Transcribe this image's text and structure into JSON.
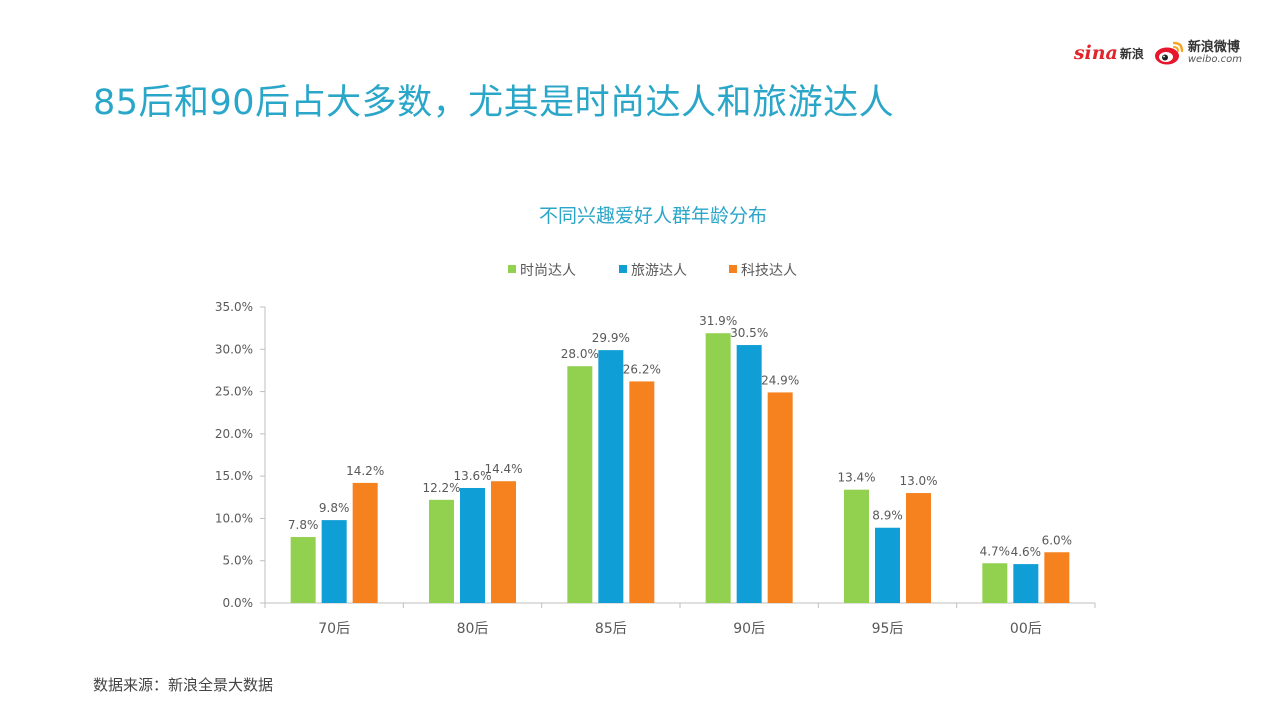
{
  "header": {
    "title": "85后和90后占大多数，尤其是时尚达人和旅游达人"
  },
  "logos": {
    "sina": {
      "word": "sina",
      "cn": "新浪"
    },
    "weibo": {
      "cn": "新浪微博",
      "en": "weibo.com"
    }
  },
  "footer": {
    "source": "数据来源：新浪全景大数据"
  },
  "chart_data": {
    "type": "bar",
    "title": "不同兴趣爱好人群年龄分布",
    "xlabel": "",
    "ylabel": "",
    "categories": [
      "70后",
      "80后",
      "85后",
      "90后",
      "95后",
      "00后"
    ],
    "yticks": [
      "0.0%",
      "5.0%",
      "10.0%",
      "15.0%",
      "20.0%",
      "25.0%",
      "30.0%",
      "35.0%"
    ],
    "ylim": [
      0,
      35
    ],
    "grid": false,
    "legend_position": "top",
    "series": [
      {
        "name": "时尚达人",
        "color": "#92d050",
        "values": [
          7.8,
          12.2,
          28.0,
          31.9,
          13.4,
          4.7
        ],
        "labels": [
          "7.8%",
          "12.2%",
          "28.0%",
          "31.9%",
          "13.4%",
          "4.7%"
        ]
      },
      {
        "name": "旅游达人",
        "color": "#0f9ed5",
        "values": [
          9.8,
          13.6,
          29.9,
          30.5,
          8.9,
          4.6
        ],
        "labels": [
          "9.8%",
          "13.6%",
          "29.9%",
          "30.5%",
          "8.9%",
          "4.6%"
        ]
      },
      {
        "name": "科技达人",
        "color": "#f5821f",
        "values": [
          14.2,
          14.4,
          26.2,
          24.9,
          13.0,
          6.0
        ],
        "labels": [
          "14.2%",
          "14.4%",
          "26.2%",
          "24.9%",
          "13.0%",
          "6.0%"
        ]
      }
    ],
    "title_color": "#2aa6c9",
    "axis_color": "#bfbfbf",
    "text_color": "#595959"
  }
}
